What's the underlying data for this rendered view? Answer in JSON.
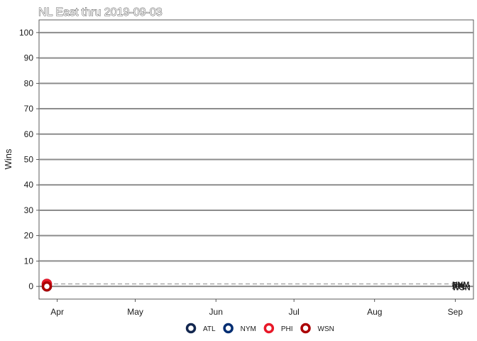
{
  "chart_data": {
    "type": "line",
    "title": "NL East thru 2019-09-03",
    "ylabel": "Wins",
    "xlabel": "",
    "ylim": [
      -5,
      105
    ],
    "yticks": [
      0,
      10,
      20,
      30,
      40,
      50,
      60,
      70,
      80,
      90,
      100
    ],
    "xlim": [
      "2019-03-25",
      "2019-09-08"
    ],
    "xticks": [
      {
        "date": "2019-04-01",
        "label": "Apr"
      },
      {
        "date": "2019-05-01",
        "label": "May"
      },
      {
        "date": "2019-06-01",
        "label": "Jun"
      },
      {
        "date": "2019-07-01",
        "label": "Jul"
      },
      {
        "date": "2019-08-01",
        "label": "Aug"
      },
      {
        "date": "2019-09-01",
        "label": "Sep"
      }
    ],
    "grid": true,
    "legend_position": "bottom",
    "series": [
      {
        "name": "ATL",
        "color": "#13274F",
        "points": [
          {
            "x": "2019-03-28",
            "y": 0
          }
        ]
      },
      {
        "name": "NYM",
        "color": "#002D72",
        "points": [
          {
            "x": "2019-03-28",
            "y": 1
          }
        ]
      },
      {
        "name": "PHI",
        "color": "#E81828",
        "points": [
          {
            "x": "2019-03-28",
            "y": 1
          }
        ]
      },
      {
        "name": "WSN",
        "color": "#AB0003",
        "points": [
          {
            "x": "2019-03-28",
            "y": 0
          }
        ]
      }
    ],
    "reference_line": {
      "y": 1,
      "style": "dashed",
      "color": "#aaaaaa"
    }
  }
}
